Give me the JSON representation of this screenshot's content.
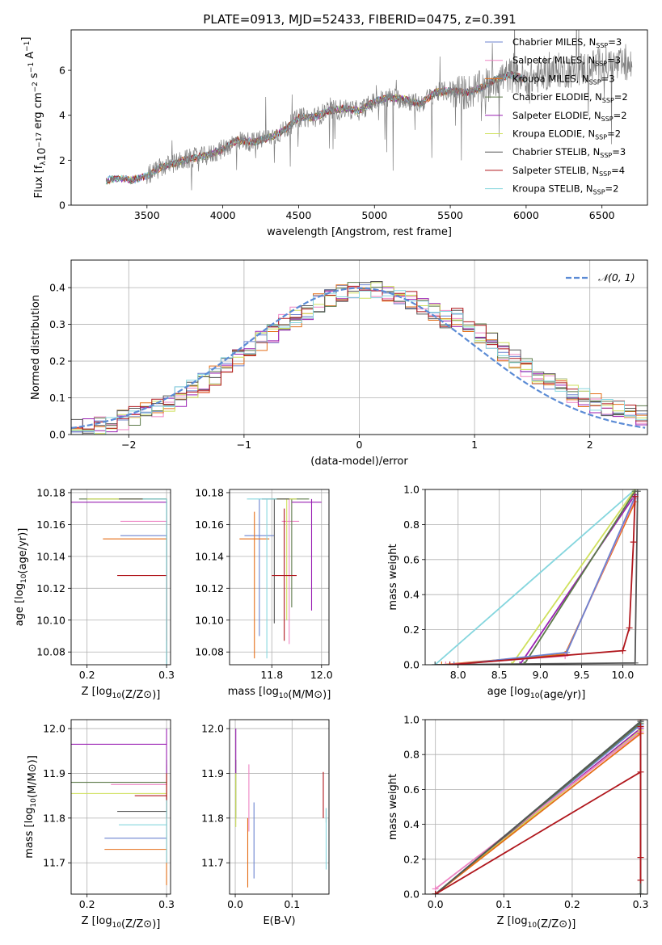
{
  "figure": {
    "title": "PLATE=0913, MJD=52433, FIBERID=0475, z=0.391"
  },
  "legend_series": [
    {
      "model": "Chabrier MILES",
      "n": "3",
      "color": "#6b83cf"
    },
    {
      "model": "Salpeter MILES",
      "n": "3",
      "color": "#ee85c4"
    },
    {
      "model": "Kroupa MILES",
      "n": "3",
      "color": "#e46e17"
    },
    {
      "model": "Chabrier ELODIE",
      "n": "2",
      "color": "#5c7a49"
    },
    {
      "model": "Salpeter ELODIE",
      "n": "2",
      "color": "#9a20b3"
    },
    {
      "model": "Kroupa ELODIE",
      "n": "2",
      "color": "#cfe05c"
    },
    {
      "model": "Chabrier STELIB",
      "n": "3",
      "color": "#555555"
    },
    {
      "model": "Salpeter STELIB",
      "n": "4",
      "color": "#b0161c"
    },
    {
      "model": "Kroupa STELIB",
      "n": "2",
      "color": "#85d6de"
    }
  ],
  "chart_data": [
    {
      "id": "spectrum",
      "type": "line",
      "xlabel": "wavelength [Angstrom, rest frame]",
      "ylabel": "Flux [f_λ10^-17 erg cm^-2 s^-1 A^-1]",
      "xlim": [
        3000,
        6800
      ],
      "ylim": [
        0,
        7.8
      ],
      "xticks": [
        3500,
        4000,
        4500,
        5000,
        5500,
        6000,
        6500
      ],
      "yticks": [
        0,
        2,
        4,
        6
      ],
      "data_color": "#808080",
      "continuum": {
        "x": [
          3230,
          3300,
          3400,
          3500,
          3600,
          3700,
          3800,
          3900,
          4000,
          4100,
          4200,
          4300,
          4400,
          4500,
          4600,
          4700,
          4800,
          4900,
          5000,
          5100,
          5200,
          5300,
          5400,
          5500,
          5600,
          5700,
          5800,
          5900,
          6000,
          6100,
          6200,
          6300,
          6400,
          6500,
          6600
        ],
        "y": [
          1.1,
          1.2,
          1.1,
          1.3,
          1.7,
          1.9,
          2.1,
          2.2,
          2.5,
          2.9,
          2.8,
          3.0,
          3.3,
          3.9,
          3.9,
          4.2,
          4.3,
          4.2,
          4.6,
          4.8,
          4.7,
          4.5,
          5.0,
          5.1,
          5.0,
          5.2,
          5.6,
          5.8,
          5.6,
          5.8,
          6.0,
          6.0,
          6.1,
          6.3,
          6.2
        ]
      }
    },
    {
      "id": "residuals",
      "type": "step",
      "xlabel": "(data-model)/error",
      "ylabel": "Normed distribution",
      "xlim": [
        -2.5,
        2.5
      ],
      "ylim": [
        0,
        0.475
      ],
      "xticks": [
        -2,
        -1,
        0,
        1,
        2
      ],
      "yticks": [
        0.0,
        0.1,
        0.2,
        0.3,
        0.4
      ],
      "gaussian_label": "𝒩(0, 1)",
      "gaussian_color": "#5b8bd5"
    },
    {
      "id": "age-vs-Z",
      "type": "errorbar",
      "xlabel": "Z [log10(Z/Z⊙)]",
      "ylabel": "age  [log10(age/yr)]",
      "xlim": [
        0.18,
        0.305
      ],
      "ylim": [
        10.072,
        10.182
      ],
      "xticks": [
        0.2,
        0.3
      ],
      "yticks": [
        10.08,
        10.1,
        10.12,
        10.14,
        10.16,
        10.18
      ],
      "points": [
        {
          "x": 0.3,
          "y": 10.153,
          "xerr": 0.058,
          "ylow": 10.0,
          "color": "#6b83cf"
        },
        {
          "x": 0.3,
          "y": 10.162,
          "xerr": 0.058,
          "ylow": 10.085,
          "color": "#ee85c4"
        },
        {
          "x": 0.3,
          "y": 10.151,
          "xerr": 0.08,
          "ylow": 10.075,
          "color": "#e46e17"
        },
        {
          "x": 0.3,
          "y": 10.176,
          "xerr": 0.11,
          "ylow": 10.0,
          "color": "#5c7a49"
        },
        {
          "x": 0.3,
          "y": 10.174,
          "xerr": 0.12,
          "ylow": 10.0,
          "color": "#9a20b3"
        },
        {
          "x": 0.3,
          "y": 10.176,
          "xerr": 0.1,
          "ylow": 10.0,
          "color": "#cfe05c"
        },
        {
          "x": 0.3,
          "y": 10.176,
          "xerr": 0.06,
          "ylow": 10.0,
          "color": "#555555"
        },
        {
          "x": 0.3,
          "y": 10.128,
          "xerr": 0.062,
          "ylow": 10.087,
          "color": "#b0161c"
        },
        {
          "x": 0.3,
          "y": 10.176,
          "xerr": 0.03,
          "ylow": 10.0,
          "color": "#85d6de"
        }
      ]
    },
    {
      "id": "age-vs-mass",
      "type": "errorbar",
      "xlabel": "mass [log10(M/M⊙)]",
      "ylabel": "",
      "xlim": [
        11.63,
        12.03
      ],
      "ylim": [
        10.072,
        10.182
      ],
      "xticks": [
        11.8,
        12.0
      ],
      "yticks": [
        10.08,
        10.1,
        10.12,
        10.14,
        10.16,
        10.18
      ],
      "points": [
        {
          "x": 11.75,
          "y": 10.153,
          "xlow": 11.69,
          "xhigh": 11.81,
          "ylow": 10.09,
          "yhigh": 10.176,
          "color": "#6b83cf"
        },
        {
          "x": 11.87,
          "y": 10.162,
          "xlow": 11.84,
          "xhigh": 11.91,
          "ylow": 10.085,
          "yhigh": 10.176,
          "color": "#ee85c4"
        },
        {
          "x": 11.73,
          "y": 10.151,
          "xlow": 11.67,
          "xhigh": 11.79,
          "ylow": 10.076,
          "yhigh": 10.168,
          "color": "#e46e17"
        },
        {
          "x": 11.88,
          "y": 10.176,
          "xlow": 11.82,
          "xhigh": 11.95,
          "ylow": 10.108,
          "yhigh": 10.176,
          "color": "#5c7a49"
        },
        {
          "x": 11.96,
          "y": 10.174,
          "xlow": 11.88,
          "xhigh": 12.0,
          "ylow": 10.106,
          "yhigh": 10.176,
          "color": "#9a20b3"
        },
        {
          "x": 11.86,
          "y": 10.176,
          "xlow": 11.8,
          "xhigh": 11.9,
          "ylow": 10.1,
          "yhigh": 10.176,
          "color": "#cfe05c"
        },
        {
          "x": 11.81,
          "y": 10.176,
          "xlow": 11.76,
          "xhigh": 11.87,
          "ylow": 10.098,
          "yhigh": 10.176,
          "color": "#555555"
        },
        {
          "x": 11.85,
          "y": 10.128,
          "xlow": 11.8,
          "xhigh": 11.9,
          "ylow": 10.087,
          "yhigh": 10.17,
          "color": "#b0161c"
        },
        {
          "x": 11.78,
          "y": 10.176,
          "xlow": 11.7,
          "xhigh": 11.82,
          "ylow": 10.076,
          "yhigh": 10.176,
          "color": "#85d6de"
        }
      ]
    },
    {
      "id": "weight-vs-age",
      "type": "line",
      "xlabel": "age  [log10(age/yr)]",
      "ylabel": "mass weight",
      "xlim": [
        7.6,
        10.3
      ],
      "ylim": [
        0,
        1.0
      ],
      "xticks": [
        8.0,
        8.5,
        9.0,
        9.5,
        10.0
      ],
      "yticks": [
        0.0,
        0.2,
        0.4,
        0.6,
        0.8,
        1.0
      ],
      "series": [
        {
          "color": "#85d6de",
          "x": [
            7.72,
            10.15
          ],
          "y": [
            0,
            1.0
          ]
        },
        {
          "color": "#cfe05c",
          "x": [
            8.65,
            10.15
          ],
          "y": [
            0,
            1.0
          ]
        },
        {
          "color": "#9a20b3",
          "x": [
            8.75,
            10.15
          ],
          "y": [
            0,
            0.97
          ]
        },
        {
          "color": "#5c7a49",
          "x": [
            8.8,
            10.15
          ],
          "y": [
            0,
            0.99
          ]
        },
        {
          "color": "#e46e17",
          "x": [
            7.8,
            9.3,
            10.15
          ],
          "y": [
            0,
            0.06,
            0.93
          ]
        },
        {
          "color": "#ee85c4",
          "x": [
            7.85,
            9.3,
            10.15
          ],
          "y": [
            0,
            0.05,
            0.95
          ]
        },
        {
          "color": "#6b83cf",
          "x": [
            7.95,
            9.32,
            10.15
          ],
          "y": [
            0,
            0.07,
            0.96
          ]
        },
        {
          "color": "#555555",
          "x": [
            7.72,
            10.15,
            10.18
          ],
          "y": [
            0,
            0.01,
            0.99
          ]
        },
        {
          "color": "#b0161c",
          "x": [
            7.9,
            10.0,
            10.08,
            10.13,
            10.15
          ],
          "y": [
            0,
            0.08,
            0.21,
            0.7,
            0.96
          ]
        }
      ]
    },
    {
      "id": "mass-vs-Z",
      "type": "errorbar",
      "xlabel": "Z [log10(Z/Z⊙)]",
      "ylabel": "mass [log10(M/M⊙)]",
      "xlim": [
        0.18,
        0.305
      ],
      "ylim": [
        11.63,
        12.02
      ],
      "xticks": [
        0.2,
        0.3
      ],
      "yticks": [
        11.7,
        11.8,
        11.9,
        12.0
      ],
      "points": [
        {
          "x": 0.3,
          "y": 11.755,
          "xerr": 0.078,
          "ylow": 11.7,
          "yhigh": 11.8,
          "color": "#6b83cf"
        },
        {
          "x": 0.3,
          "y": 11.875,
          "xerr": 0.07,
          "ylow": 11.8,
          "yhigh": 11.92,
          "color": "#ee85c4"
        },
        {
          "x": 0.3,
          "y": 11.73,
          "xerr": 0.078,
          "ylow": 11.65,
          "yhigh": 11.8,
          "color": "#e46e17"
        },
        {
          "x": 0.3,
          "y": 11.88,
          "xerr": 0.12,
          "ylow": 11.8,
          "yhigh": 11.93,
          "color": "#5c7a49"
        },
        {
          "x": 0.3,
          "y": 11.965,
          "xerr": 0.12,
          "ylow": 11.9,
          "yhigh": 12.0,
          "color": "#9a20b3"
        },
        {
          "x": 0.3,
          "y": 11.855,
          "xerr": 0.12,
          "ylow": 11.8,
          "yhigh": 11.9,
          "color": "#cfe05c"
        },
        {
          "x": 0.3,
          "y": 11.815,
          "xerr": 0.062,
          "ylow": 11.8,
          "yhigh": 11.85,
          "color": "#555555"
        },
        {
          "x": 0.3,
          "y": 11.85,
          "xerr": 0.04,
          "ylow": 11.8,
          "yhigh": 11.9,
          "color": "#b0161c"
        },
        {
          "x": 0.3,
          "y": 11.785,
          "xerr": 0.06,
          "ylow": 11.7,
          "yhigh": 11.84,
          "color": "#85d6de"
        }
      ]
    },
    {
      "id": "mass-vs-EBV",
      "type": "errorbar",
      "xlabel": "E(B-V)",
      "ylabel": "",
      "xlim": [
        -0.01,
        0.165
      ],
      "ylim": [
        11.63,
        12.02
      ],
      "xticks": [
        0.0,
        0.1
      ],
      "yticks": [
        11.7,
        11.8,
        11.9,
        12.0
      ],
      "points": [
        {
          "x": 0.033,
          "y": 11.755,
          "ylow": 11.665,
          "yhigh": 11.835,
          "color": "#6b83cf"
        },
        {
          "x": 0.024,
          "y": 11.875,
          "ylow": 11.77,
          "yhigh": 11.92,
          "color": "#ee85c4"
        },
        {
          "x": 0.022,
          "y": 11.73,
          "ylow": 11.645,
          "yhigh": 11.8,
          "color": "#e46e17"
        },
        {
          "x": 0.001,
          "y": 11.88,
          "ylow": 11.8,
          "yhigh": 11.93,
          "color": "#5c7a49"
        },
        {
          "x": 0.001,
          "y": 11.965,
          "ylow": 11.9,
          "yhigh": 12.0,
          "color": "#9a20b3"
        },
        {
          "x": 0.001,
          "y": 11.855,
          "ylow": 11.78,
          "yhigh": 11.9,
          "color": "#cfe05c"
        },
        {
          "x": 0.16,
          "y": 11.815,
          "ylow": 11.79,
          "yhigh": 11.822,
          "color": "#555555"
        },
        {
          "x": 0.155,
          "y": 11.85,
          "ylow": 11.8,
          "yhigh": 11.903,
          "color": "#b0161c"
        },
        {
          "x": 0.16,
          "y": 11.785,
          "ylow": 11.685,
          "yhigh": 11.822,
          "color": "#85d6de"
        }
      ]
    },
    {
      "id": "weight-vs-Z",
      "type": "line",
      "xlabel": "Z [log10(Z/Z⊙)]",
      "ylabel": "mass weight",
      "xlim": [
        -0.015,
        0.31
      ],
      "ylim": [
        0,
        1.0
      ],
      "xticks": [
        0.0,
        0.1,
        0.2,
        0.3
      ],
      "yticks": [
        0.0,
        0.2,
        0.4,
        0.6,
        0.8,
        1.0
      ],
      "series": [
        {
          "color": "#85d6de",
          "x": [
            0.0,
            0.3,
            0.3
          ],
          "y": [
            0,
            0.99,
            1.0
          ]
        },
        {
          "color": "#6b83cf",
          "x": [
            0.0,
            0.3,
            0.3
          ],
          "y": [
            0,
            0.97,
            1.0
          ]
        },
        {
          "color": "#9a20b3",
          "x": [
            0.0,
            0.3
          ],
          "y": [
            0,
            0.95
          ]
        },
        {
          "color": "#cfe05c",
          "x": [
            0.0,
            0.3
          ],
          "y": [
            0,
            0.94
          ]
        },
        {
          "color": "#ee85c4",
          "x": [
            0.0,
            0.3,
            0.3
          ],
          "y": [
            0.03,
            0.93,
            1.0
          ]
        },
        {
          "color": "#e46e17",
          "x": [
            0.0,
            0.3,
            0.3
          ],
          "y": [
            0,
            0.92,
            1.0
          ]
        },
        {
          "color": "#5c7a49",
          "x": [
            0.0,
            0.3,
            0.3
          ],
          "y": [
            0,
            0.98,
            0.0
          ]
        },
        {
          "color": "#555555",
          "x": [
            0.0,
            0.3,
            0.3
          ],
          "y": [
            0,
            0.99,
            0.0
          ]
        },
        {
          "color": "#b0161c",
          "x": [
            0.0,
            0.3,
            0.3,
            0.3,
            0.3
          ],
          "y": [
            0,
            0.7,
            0.21,
            0.08,
            0.96
          ]
        }
      ]
    }
  ]
}
